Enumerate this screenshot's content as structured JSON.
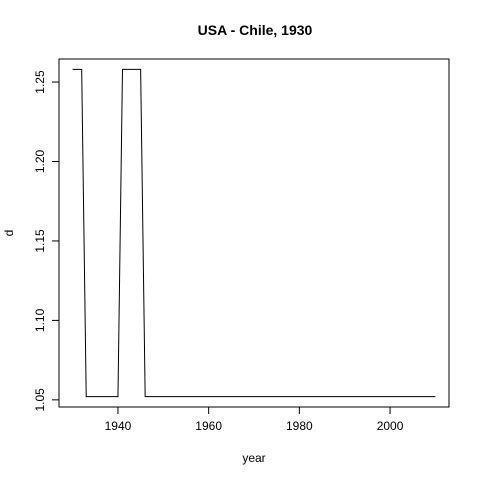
{
  "chart_data": {
    "type": "line",
    "title": "USA - Chile, 1930",
    "xlabel": "year",
    "ylabel": "d",
    "xlim": [
      1927,
      2013
    ],
    "ylim": [
      1.0455,
      1.2645
    ],
    "xticks": [
      1940,
      1960,
      1980,
      2000
    ],
    "yticks": [
      1.05,
      1.1,
      1.15,
      1.2,
      1.25
    ],
    "ytick_labels": [
      "1.05",
      "1.10",
      "1.15",
      "1.20",
      "1.25"
    ],
    "grid": false,
    "series": [
      {
        "name": "d",
        "color": "#000000",
        "x": [
          1930,
          1932,
          1933,
          1940,
          1941,
          1945,
          1946,
          2010
        ],
        "y": [
          1.258,
          1.258,
          1.052,
          1.052,
          1.258,
          1.258,
          1.052,
          1.052
        ]
      }
    ]
  }
}
